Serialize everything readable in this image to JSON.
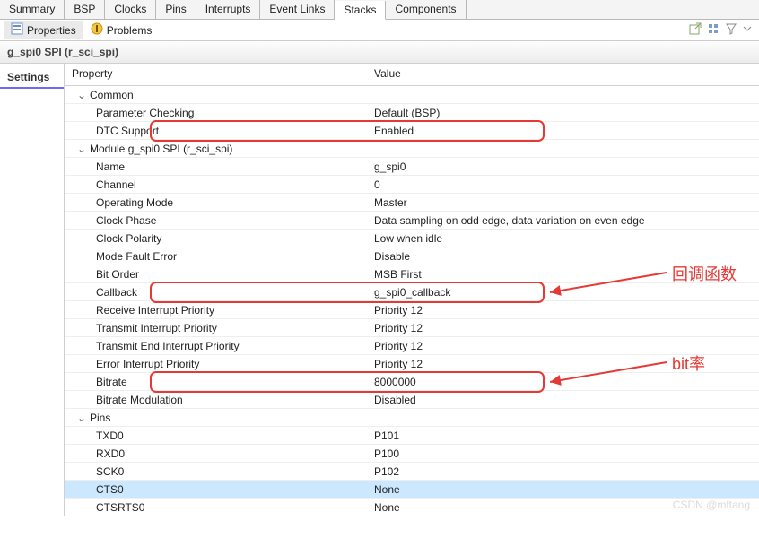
{
  "top_tabs": {
    "items": [
      "Summary",
      "BSP",
      "Clocks",
      "Pins",
      "Interrupts",
      "Event Links",
      "Stacks",
      "Components"
    ],
    "active_index": 6
  },
  "sec_bar": {
    "properties_label": "Properties",
    "problems_label": "Problems",
    "active": "properties",
    "tool_icons": [
      "new-window-icon",
      "tree-mode-icon",
      "filter-icon",
      "menu-icon"
    ]
  },
  "title": "g_spi0 SPI (r_sci_spi)",
  "side_tab": {
    "label": "Settings"
  },
  "columns": {
    "property": "Property",
    "value": "Value"
  },
  "groups": [
    {
      "label": "Common",
      "rows": [
        {
          "prop": "Parameter Checking",
          "val": "Default (BSP)"
        },
        {
          "prop": "DTC Support",
          "val": "Enabled",
          "boxed": true
        }
      ]
    },
    {
      "label": "Module g_spi0 SPI (r_sci_spi)",
      "rows": [
        {
          "prop": "Name",
          "val": "g_spi0"
        },
        {
          "prop": "Channel",
          "val": "0"
        },
        {
          "prop": "Operating Mode",
          "val": "Master"
        },
        {
          "prop": "Clock Phase",
          "val": "Data sampling on odd edge, data variation on even edge"
        },
        {
          "prop": "Clock Polarity",
          "val": "Low when idle"
        },
        {
          "prop": "Mode Fault Error",
          "val": "Disable"
        },
        {
          "prop": "Bit Order",
          "val": "MSB First"
        },
        {
          "prop": "Callback",
          "val": "g_spi0_callback",
          "boxed": true,
          "annot": "cb"
        },
        {
          "prop": "Receive Interrupt Priority",
          "val": "Priority 12"
        },
        {
          "prop": "Transmit Interrupt Priority",
          "val": "Priority 12"
        },
        {
          "prop": "Transmit End Interrupt Priority",
          "val": "Priority 12"
        },
        {
          "prop": "Error Interrupt Priority",
          "val": "Priority 12"
        },
        {
          "prop": "Bitrate",
          "val": "8000000",
          "boxed": true,
          "annot": "bit"
        },
        {
          "prop": "Bitrate Modulation",
          "val": "Disabled"
        }
      ]
    },
    {
      "label": "Pins",
      "rows": [
        {
          "prop": "TXD0",
          "val": "P101"
        },
        {
          "prop": "RXD0",
          "val": "P100"
        },
        {
          "prop": "SCK0",
          "val": "P102"
        },
        {
          "prop": "CTS0",
          "val": "None",
          "highlighted": true
        },
        {
          "prop": "CTSRTS0",
          "val": "None"
        }
      ]
    }
  ],
  "annotations": {
    "cb": "回调函数",
    "bit": "bit率"
  },
  "watermark": "CSDN @mftang",
  "style": {
    "highlight_color": "#e53935",
    "row_highlight_bg": "#cce8ff"
  }
}
